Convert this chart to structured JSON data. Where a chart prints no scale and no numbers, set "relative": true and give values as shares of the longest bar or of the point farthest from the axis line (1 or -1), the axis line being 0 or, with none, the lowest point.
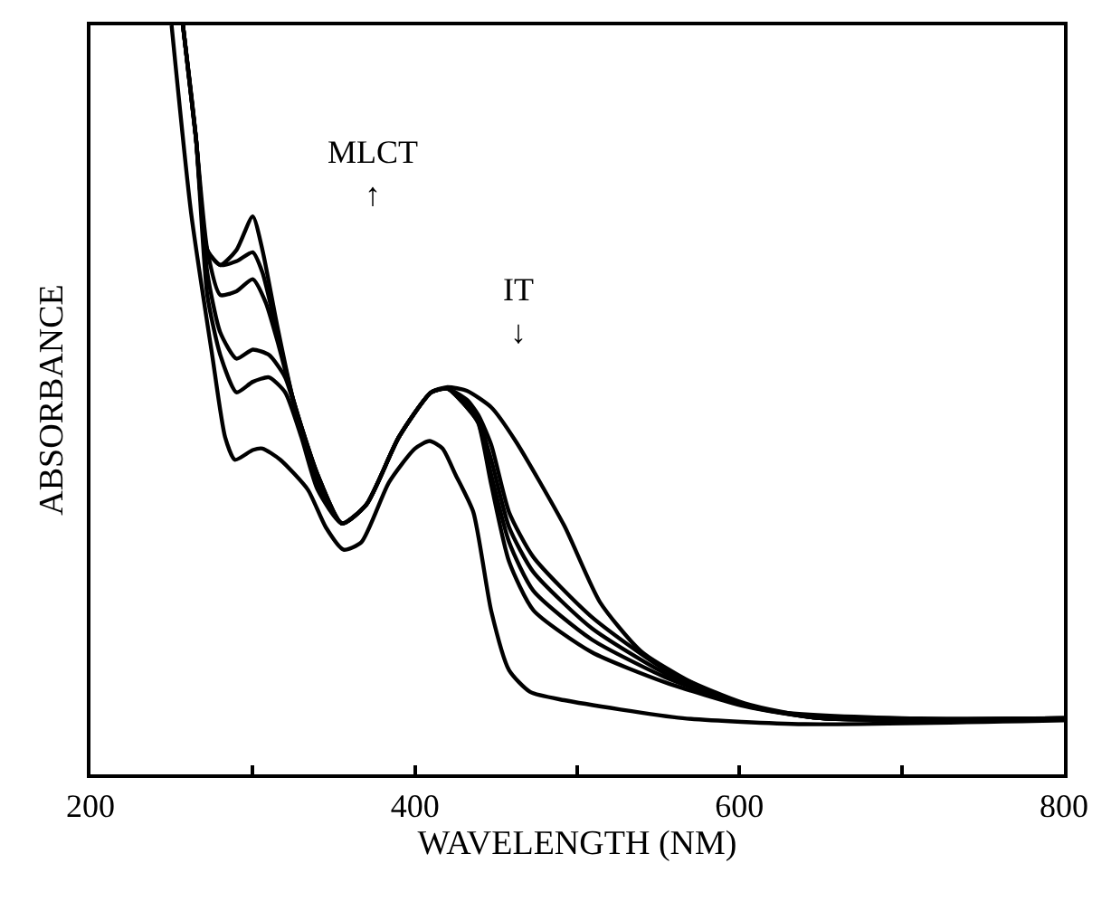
{
  "chart_data": {
    "type": "line",
    "relative": true,
    "xlabel": "WAVELENGTH (NM)",
    "ylabel": "ABSORBANCE",
    "xlim": [
      200,
      800
    ],
    "xticks": [
      200,
      {
        "value": 300,
        "label": null
      },
      400,
      {
        "value": 500,
        "label": null
      },
      600,
      {
        "value": 700,
        "label": null
      },
      800
    ],
    "line_style": "solid",
    "marker": "none",
    "annotations": [
      "MLCT\n↑",
      "IT\n↓"
    ],
    "series": [
      {
        "color": "#000000",
        "x": [
          257,
          265,
          272,
          280,
          290,
          300,
          306,
          315,
          325,
          340,
          355,
          370,
          390,
          410,
          420,
          432,
          439,
          447,
          458,
          473,
          509,
          554,
          603,
          650,
          800
        ],
        "values": [
          1.0,
          0.85,
          0.7,
          0.68,
          0.7,
          0.745,
          0.7,
          0.6,
          0.5,
          0.4,
          0.335,
          0.36,
          0.45,
          0.51,
          0.515,
          0.49,
          0.469,
          0.387,
          0.284,
          0.219,
          0.163,
          0.123,
          0.091,
          0.075,
          0.075
        ]
      },
      {
        "color": "#000000",
        "x": [
          257,
          265,
          272,
          280,
          290,
          300,
          306,
          315,
          325,
          340,
          355,
          370,
          390,
          410,
          420,
          432,
          439,
          447,
          458,
          473,
          509,
          554,
          603,
          650,
          800
        ],
        "values": [
          1.0,
          0.85,
          0.7,
          0.68,
          0.685,
          0.697,
          0.67,
          0.59,
          0.5,
          0.4,
          0.335,
          0.36,
          0.45,
          0.51,
          0.515,
          0.49,
          0.47,
          0.4,
          0.31,
          0.245,
          0.18,
          0.13,
          0.092,
          0.075,
          0.075
        ]
      },
      {
        "color": "#000000",
        "x": [
          257,
          265,
          272,
          280,
          290,
          300,
          308,
          315,
          325,
          340,
          355,
          370,
          390,
          410,
          420,
          432,
          439,
          447,
          458,
          473,
          509,
          554,
          603,
          650,
          800
        ],
        "values": [
          1.0,
          0.85,
          0.7,
          0.64,
          0.645,
          0.661,
          0.63,
          0.58,
          0.5,
          0.4,
          0.335,
          0.36,
          0.45,
          0.51,
          0.515,
          0.495,
          0.475,
          0.42,
          0.33,
          0.27,
          0.195,
          0.135,
          0.093,
          0.075,
          0.075
        ]
      },
      {
        "color": "#000000",
        "x": [
          257,
          265,
          272,
          280,
          290,
          300,
          310,
          320,
          330,
          340,
          355,
          370,
          390,
          410,
          420,
          432,
          439,
          447,
          458,
          473,
          509,
          554,
          603,
          650,
          800
        ],
        "values": [
          1.0,
          0.85,
          0.67,
          0.59,
          0.555,
          0.567,
          0.56,
          0.53,
          0.46,
          0.39,
          0.335,
          0.36,
          0.45,
          0.51,
          0.515,
          0.5,
          0.48,
          0.44,
          0.35,
          0.29,
          0.21,
          0.14,
          0.095,
          0.075,
          0.075
        ]
      },
      {
        "color": "#000000",
        "x": [
          257,
          265,
          272,
          280,
          290,
          300,
          310,
          320,
          330,
          340,
          355,
          370,
          390,
          410,
          420,
          432,
          447,
          462,
          492,
          514,
          540,
          584,
          621,
          700,
          800
        ],
        "values": [
          1.0,
          0.85,
          0.64,
          0.56,
          0.51,
          0.524,
          0.53,
          0.51,
          0.45,
          0.38,
          0.335,
          0.36,
          0.45,
          0.51,
          0.517,
          0.512,
          0.49,
          0.445,
          0.332,
          0.23,
          0.163,
          0.108,
          0.084,
          0.075,
          0.075
        ]
      },
      {
        "color": "#000000",
        "x": [
          250,
          262,
          275,
          283,
          289,
          300,
          306,
          317,
          334,
          345,
          356,
          367,
          384,
          400,
          409,
          417,
          425,
          436,
          447,
          458,
          471,
          492,
          565,
          640,
          800
        ],
        "values": [
          1.0,
          0.75,
          0.56,
          0.45,
          0.42,
          0.433,
          0.435,
          0.42,
          0.38,
          0.33,
          0.3,
          0.31,
          0.39,
          0.435,
          0.445,
          0.435,
          0.4,
          0.35,
          0.218,
          0.139,
          0.11,
          0.099,
          0.075,
          0.067,
          0.072
        ]
      }
    ]
  }
}
